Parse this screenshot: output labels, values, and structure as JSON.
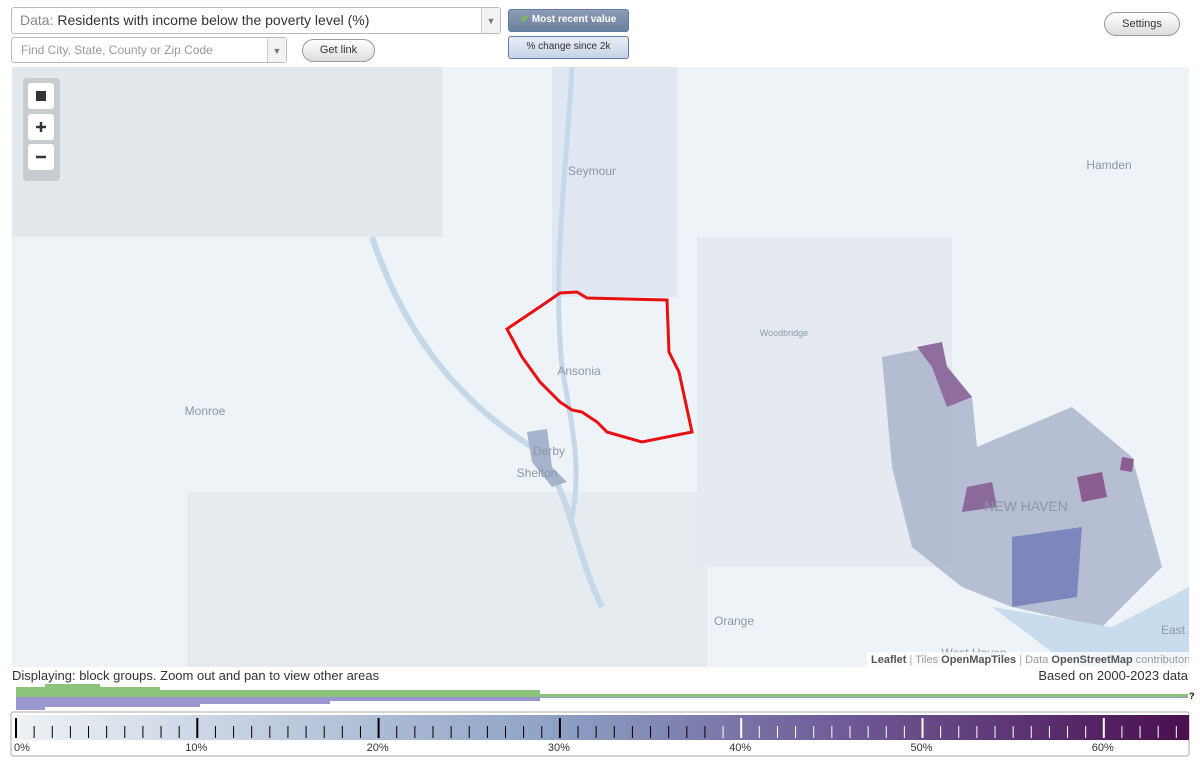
{
  "toolbar": {
    "data_label": "Data:",
    "data_value": "Residents with income below the poverty level (%)",
    "search_placeholder": "Find City, State, County or Zip Code",
    "get_link": "Get link",
    "most_recent": "Most recent value",
    "pct_change": "% change since 2k",
    "settings": "Settings"
  },
  "map": {
    "place_labels": [
      "Seymour",
      "Hamden",
      "Woodbridge",
      "Ansonia",
      "Monroe",
      "Derby",
      "Shelton",
      "NEW HAVEN",
      "Orange",
      "East",
      "West Haven"
    ],
    "attribution": {
      "leaflet": "Leaflet",
      "separator": "|",
      "tiles": "Tiles",
      "tiles_src": "OpenMapTiles",
      "data": "Data",
      "data_src": "OpenStreetMap",
      "contributors": "contributors"
    }
  },
  "status": {
    "displaying": "Displaying: block groups. Zoom out and pan to view other areas",
    "based_on": "Based on 2000-2023 data"
  },
  "legend": {
    "tick_labels": [
      "0%",
      "10%",
      "20%",
      "30%",
      "40%",
      "50%",
      "60%"
    ],
    "question": "?"
  }
}
